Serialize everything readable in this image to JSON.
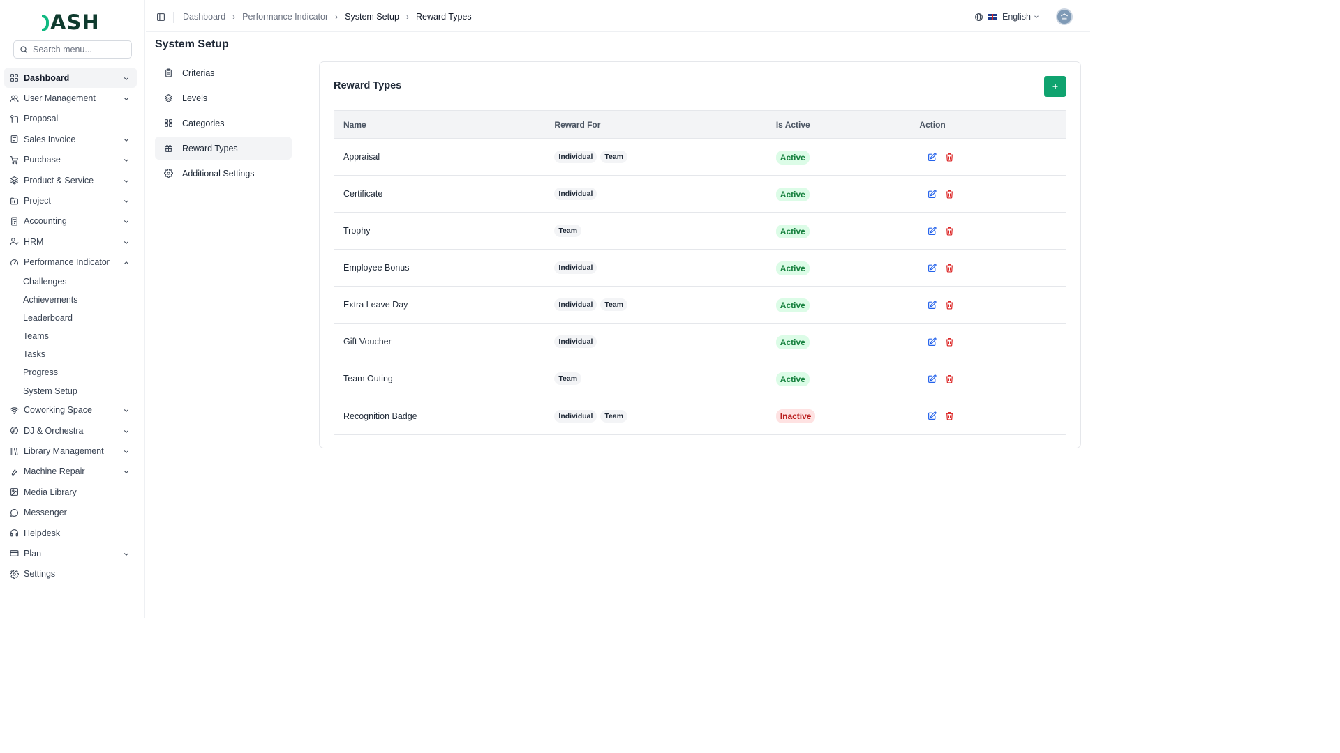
{
  "logo": {
    "text": "ASH"
  },
  "search": {
    "placeholder": "Search menu..."
  },
  "sidebar": {
    "items": [
      {
        "label": "Dashboard",
        "icon": "grid-icon",
        "chevron": true,
        "active": true
      },
      {
        "label": "User Management",
        "icon": "users-icon",
        "chevron": true
      },
      {
        "label": "Proposal",
        "icon": "proposal-icon",
        "chevron": false
      },
      {
        "label": "Sales Invoice",
        "icon": "invoice-icon",
        "chevron": true
      },
      {
        "label": "Purchase",
        "icon": "cart-icon",
        "chevron": true
      },
      {
        "label": "Product & Service",
        "icon": "layers-icon",
        "chevron": true
      },
      {
        "label": "Project",
        "icon": "folder-icon",
        "chevron": true
      },
      {
        "label": "Accounting",
        "icon": "calculator-icon",
        "chevron": true
      },
      {
        "label": "HRM",
        "icon": "user-group-icon",
        "chevron": true
      },
      {
        "label": "Performance Indicator",
        "icon": "gauge-icon",
        "chevron": true,
        "expanded": true
      }
    ],
    "subitems": [
      "Challenges",
      "Achievements",
      "Leaderboard",
      "Teams",
      "Tasks",
      "Progress",
      "System Setup"
    ],
    "items_after": [
      {
        "label": "Coworking Space",
        "icon": "wifi-icon",
        "chevron": true
      },
      {
        "label": "DJ & Orchestra",
        "icon": "music-icon",
        "chevron": true
      },
      {
        "label": "Library Management",
        "icon": "library-icon",
        "chevron": true
      },
      {
        "label": "Machine Repair",
        "icon": "wrench-icon",
        "chevron": true
      },
      {
        "label": "Media Library",
        "icon": "image-icon",
        "chevron": false
      },
      {
        "label": "Messenger",
        "icon": "message-icon",
        "chevron": false
      },
      {
        "label": "Helpdesk",
        "icon": "headset-icon",
        "chevron": false
      },
      {
        "label": "Plan",
        "icon": "card-icon",
        "chevron": true
      },
      {
        "label": "Settings",
        "icon": "gear-icon",
        "chevron": false
      }
    ]
  },
  "header": {
    "breadcrumbs": [
      "Dashboard",
      "Performance Indicator",
      "System Setup",
      "Reward Types"
    ],
    "language": "English"
  },
  "page": {
    "title": "System Setup",
    "setup_menu": [
      {
        "label": "Criterias",
        "icon": "clipboard-icon"
      },
      {
        "label": "Levels",
        "icon": "layers-icon"
      },
      {
        "label": "Categories",
        "icon": "grid-icon"
      },
      {
        "label": "Reward Types",
        "icon": "gift-icon",
        "active": true
      },
      {
        "label": "Additional Settings",
        "icon": "gear-icon"
      }
    ]
  },
  "card": {
    "title": "Reward Types",
    "add_label": "+"
  },
  "table": {
    "headers": [
      "Name",
      "Reward For",
      "Is Active",
      "Action"
    ],
    "rows": [
      {
        "name": "Appraisal",
        "tags": [
          "Individual",
          "Team"
        ],
        "status": "Active"
      },
      {
        "name": "Certificate",
        "tags": [
          "Individual"
        ],
        "status": "Active"
      },
      {
        "name": "Trophy",
        "tags": [
          "Team"
        ],
        "status": "Active"
      },
      {
        "name": "Employee Bonus",
        "tags": [
          "Individual"
        ],
        "status": "Active"
      },
      {
        "name": "Extra Leave Day",
        "tags": [
          "Individual",
          "Team"
        ],
        "status": "Active"
      },
      {
        "name": "Gift Voucher",
        "tags": [
          "Individual"
        ],
        "status": "Active"
      },
      {
        "name": "Team Outing",
        "tags": [
          "Team"
        ],
        "status": "Active"
      },
      {
        "name": "Recognition Badge",
        "tags": [
          "Individual",
          "Team"
        ],
        "status": "Inactive"
      }
    ]
  },
  "colors": {
    "accent": "#10a36f",
    "active_bg": "#dcfce7",
    "active_text": "#15803d",
    "inactive_bg": "#fee2e2",
    "inactive_text": "#b91c1c",
    "edit_icon": "#2563eb",
    "delete_icon": "#dc2626"
  }
}
